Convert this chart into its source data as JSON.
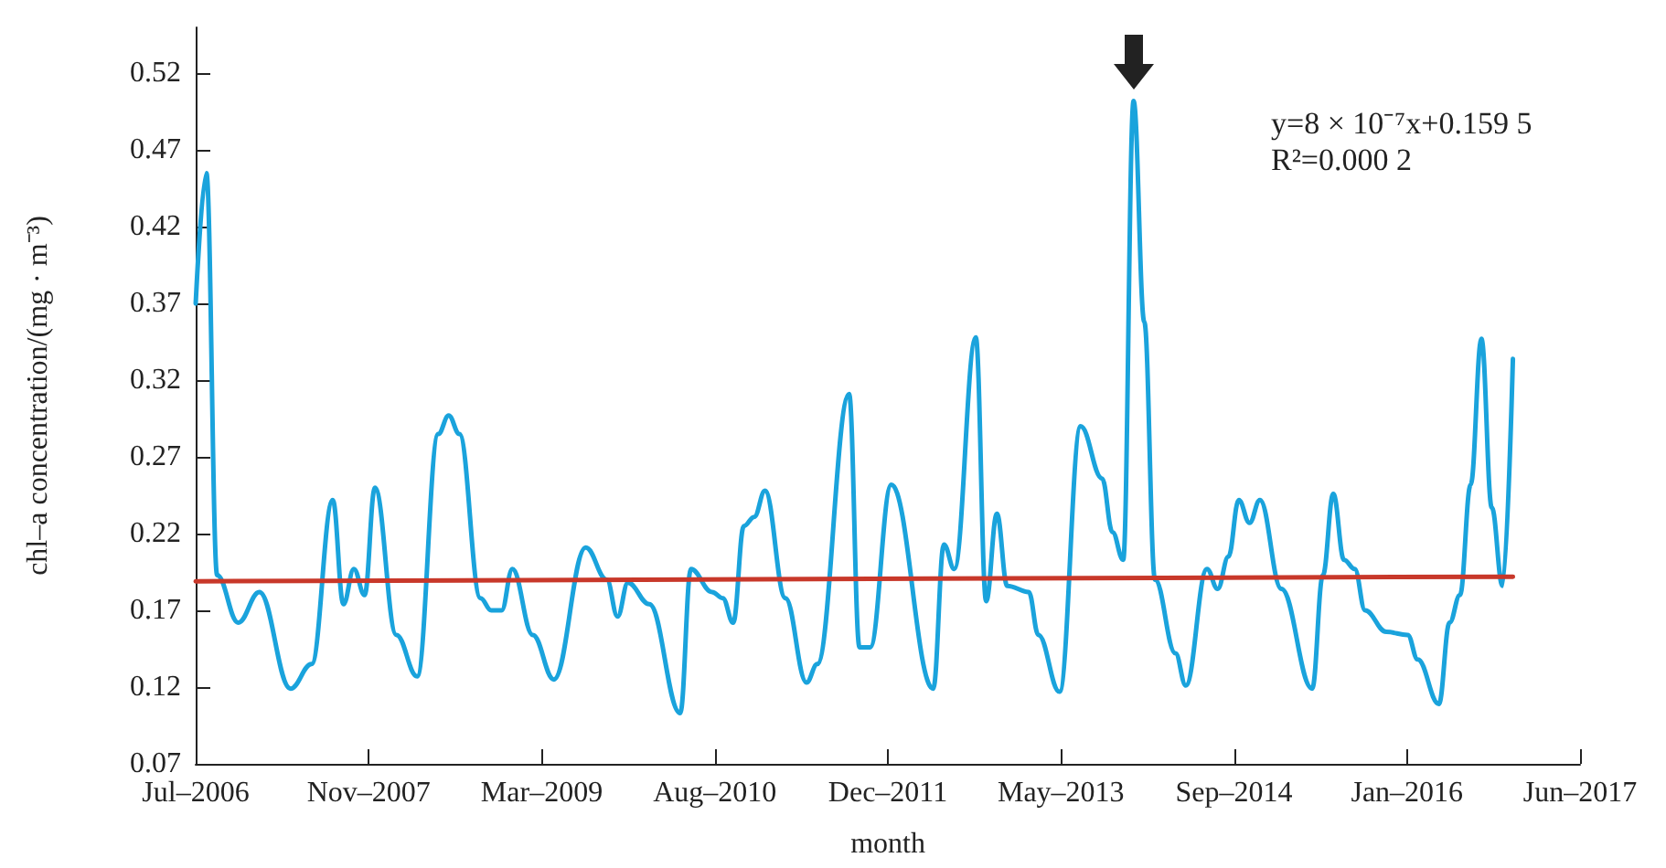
{
  "chart_data": {
    "type": "line",
    "xlabel": "month",
    "ylabel": "chl–a concentration/(mg · m⁻³)",
    "xlim": [
      "2006-07-01",
      "2017-06-13"
    ],
    "xticks": [
      {
        "value": "2006-07-01",
        "label": "Jul–2006"
      },
      {
        "value": "2007-11-13",
        "label": "Nov–2007"
      },
      {
        "value": "2009-03-27",
        "label": "Mar–2009"
      },
      {
        "value": "2010-08-09",
        "label": "Aug–2010"
      },
      {
        "value": "2011-12-22",
        "label": "Dec–2011"
      },
      {
        "value": "2013-05-05",
        "label": "May–2013"
      },
      {
        "value": "2014-09-17",
        "label": "Sep–2014"
      },
      {
        "value": "2016-01-30",
        "label": "Jan–2016"
      },
      {
        "value": "2017-06-13",
        "label": "Jun–2017"
      }
    ],
    "ylim": [
      0.07,
      0.55
    ],
    "yticks": [
      0.07,
      0.12,
      0.17,
      0.22,
      0.27,
      0.32,
      0.37,
      0.42,
      0.47,
      0.52
    ],
    "grid": false,
    "annotations": [
      "y=8 × 10⁻⁷x+0.159 5",
      "R²=0.000 2"
    ],
    "series": [
      {
        "color": "#1aa3dc",
        "x": [
          "2006-07",
          "2006-08",
          "2006-09",
          "2006-11",
          "2007-01",
          "2007-04",
          "2007-06",
          "2007-08",
          "2007-09",
          "2007-10",
          "2007-11",
          "2007-12",
          "2008-02",
          "2008-04",
          "2008-06",
          "2008-07",
          "2008-08",
          "2008-10",
          "2008-11",
          "2008-12",
          "2009-01",
          "2009-03",
          "2009-05",
          "2009-08",
          "2009-10",
          "2009-11",
          "2009-12",
          "2010-02",
          "2010-05",
          "2010-06",
          "2010-08",
          "2010-09",
          "2010-10",
          "2010-11",
          "2010-12",
          "2011-01",
          "2011-03",
          "2011-05",
          "2011-06",
          "2011-09",
          "2011-10",
          "2011-11",
          "2012-01",
          "2012-05",
          "2012-06",
          "2012-07",
          "2012-09",
          "2012-10",
          "2012-11",
          "2012-12",
          "2013-02",
          "2013-03",
          "2013-05",
          "2013-07",
          "2013-09",
          "2013-10",
          "2013-11",
          "2013-12",
          "2014-01",
          "2014-02",
          "2014-04",
          "2014-05",
          "2014-07",
          "2014-08",
          "2014-09",
          "2014-10",
          "2014-11",
          "2014-12",
          "2015-02",
          "2015-05",
          "2015-06",
          "2015-07",
          "2015-08",
          "2015-09",
          "2015-10",
          "2015-12",
          "2016-02",
          "2016-03",
          "2016-05",
          "2016-06",
          "2016-07",
          "2016-08",
          "2016-09",
          "2016-10",
          "2016-11",
          "2016-12"
        ],
        "values": [
          0.37,
          0.455,
          0.193,
          0.162,
          0.182,
          0.119,
          0.135,
          0.242,
          0.174,
          0.197,
          0.18,
          0.25,
          0.154,
          0.127,
          0.285,
          0.297,
          0.285,
          0.178,
          0.17,
          0.17,
          0.197,
          0.154,
          0.125,
          0.211,
          0.19,
          0.166,
          0.188,
          0.174,
          0.103,
          0.197,
          0.182,
          0.178,
          0.162,
          0.225,
          0.231,
          0.248,
          0.178,
          0.123,
          0.135,
          0.311,
          0.146,
          0.146,
          0.252,
          0.119,
          0.213,
          0.197,
          0.348,
          0.176,
          0.233,
          0.186,
          0.182,
          0.154,
          0.117,
          0.29,
          0.256,
          0.221,
          0.203,
          0.502,
          0.358,
          0.19,
          0.142,
          0.121,
          0.197,
          0.184,
          0.205,
          0.242,
          0.227,
          0.242,
          0.184,
          0.119,
          0.193,
          0.246,
          0.203,
          0.197,
          0.17,
          0.156,
          0.154,
          0.138,
          0.109,
          0.162,
          0.18,
          0.252,
          0.347,
          0.237,
          0.186,
          0.334
        ]
      },
      {
        "color": "#c8382a",
        "x": [
          "2006-07",
          "2016-12"
        ],
        "values": [
          0.189,
          0.192
        ]
      }
    ]
  }
}
